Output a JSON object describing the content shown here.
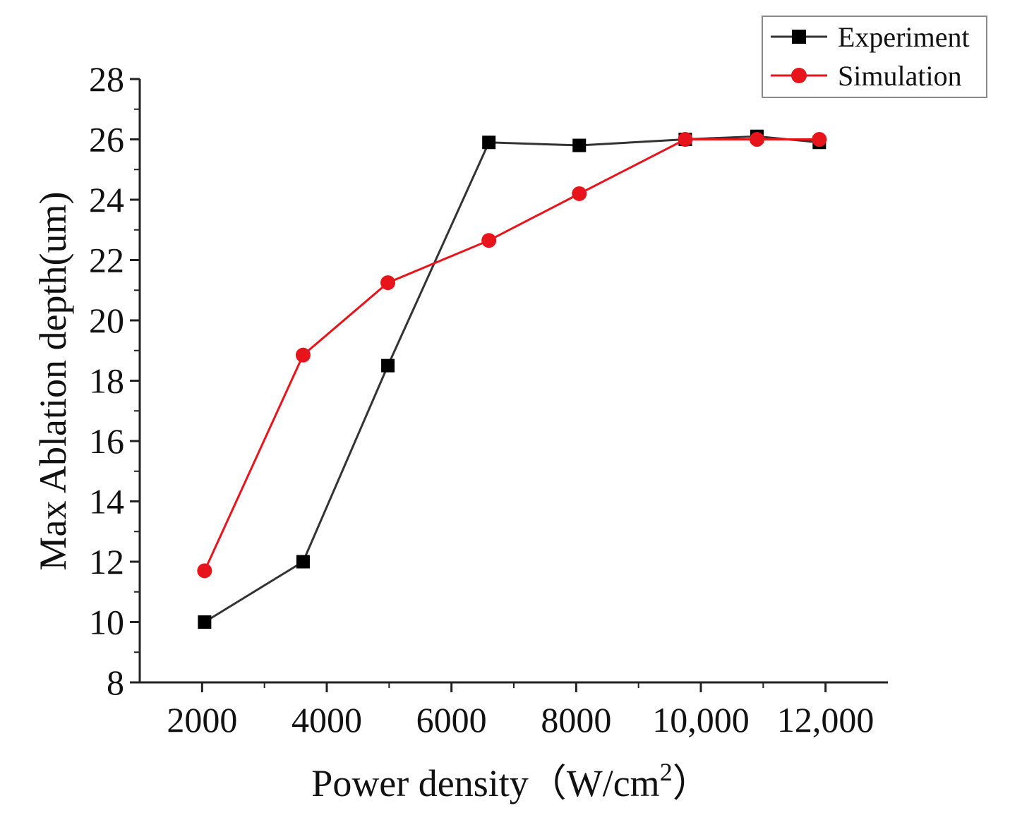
{
  "chart_data": {
    "type": "line",
    "title": "",
    "xlabel": "Power density（W/cm",
    "xlabel_superscript": "2",
    "xlabel_close": "）",
    "ylabel": "Max Ablation depth(um)",
    "xlim": [
      1000,
      13000
    ],
    "ylim": [
      8,
      28
    ],
    "x_ticks": [
      {
        "value": 2000,
        "label": "2000"
      },
      {
        "value": 4000,
        "label": "4000"
      },
      {
        "value": 6000,
        "label": "6000"
      },
      {
        "value": 8000,
        "label": "8000"
      },
      {
        "value": 10000,
        "label": "10,000"
      },
      {
        "value": 12000,
        "label": "12,000"
      }
    ],
    "y_ticks": [
      {
        "value": 8,
        "label": "8"
      },
      {
        "value": 10,
        "label": "10"
      },
      {
        "value": 12,
        "label": "12"
      },
      {
        "value": 14,
        "label": "14"
      },
      {
        "value": 16,
        "label": "16"
      },
      {
        "value": 18,
        "label": "18"
      },
      {
        "value": 20,
        "label": "20"
      },
      {
        "value": 22,
        "label": "22"
      },
      {
        "value": 24,
        "label": "24"
      },
      {
        "value": 26,
        "label": "26"
      },
      {
        "value": 28,
        "label": "28"
      }
    ],
    "grid": false,
    "legend_position": "top-right",
    "series": [
      {
        "name": "Experiment",
        "color": "#333333",
        "marker_color": "#000000",
        "marker": "square",
        "x": [
          2040,
          3620,
          4980,
          6600,
          8050,
          9750,
          10900,
          11900
        ],
        "y": [
          10.0,
          12.0,
          18.5,
          25.9,
          25.8,
          26.0,
          26.1,
          25.9
        ]
      },
      {
        "name": "Simulation",
        "color": "#e8141b",
        "marker_color": "#e8141b",
        "marker": "circle",
        "x": [
          2040,
          3620,
          4980,
          6600,
          8050,
          9750,
          10900,
          11900
        ],
        "y": [
          11.7,
          18.85,
          21.25,
          22.65,
          24.2,
          26.0,
          26.0,
          26.0
        ]
      }
    ]
  }
}
